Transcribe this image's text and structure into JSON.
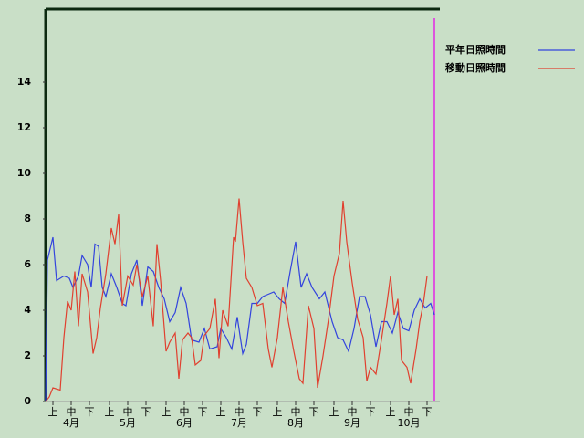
{
  "chart_data": {
    "type": "line",
    "series": [
      {
        "name": "平年日照時間",
        "color": "#3344dd",
        "x": [
          0,
          1,
          4,
          6,
          10,
          13,
          15,
          18,
          20,
          23,
          25,
          27,
          29,
          31,
          33,
          36,
          39,
          42,
          44,
          47,
          50,
          53,
          56,
          59,
          62,
          65,
          68,
          71,
          74,
          77,
          80,
          84,
          87,
          90,
          94,
          96,
          99,
          102,
          105,
          108,
          110,
          113,
          116,
          119,
          122,
          125,
          128,
          131,
          134,
          137,
          140,
          143,
          146,
          150,
          153,
          157,
          160,
          163,
          166,
          169,
          172,
          175,
          178,
          181,
          184,
          187,
          190,
          193,
          196,
          199,
          202,
          205,
          208,
          211,
          213
        ],
        "values": [
          0,
          6.2,
          7.2,
          5.3,
          5.5,
          5.4,
          5.0,
          5.5,
          6.4,
          6.0,
          5.0,
          6.9,
          6.8,
          5.0,
          4.6,
          5.6,
          5.0,
          4.3,
          4.2,
          5.6,
          6.2,
          4.2,
          5.9,
          5.7,
          5.0,
          4.5,
          3.5,
          3.9,
          5.0,
          4.3,
          2.7,
          2.6,
          3.2,
          2.3,
          2.4,
          3.2,
          2.8,
          2.3,
          3.7,
          2.1,
          2.5,
          4.3,
          4.3,
          4.6,
          4.7,
          4.8,
          4.5,
          4.3,
          5.7,
          7.0,
          5.0,
          5.6,
          5.0,
          4.5,
          4.8,
          3.5,
          2.8,
          2.7,
          2.2,
          3.2,
          4.6,
          4.6,
          3.8,
          2.4,
          3.5,
          3.5,
          3.0,
          3.9,
          3.2,
          3.1,
          4.0,
          4.5,
          4.1,
          4.3,
          3.8
        ]
      },
      {
        "name": "移動日照時間",
        "color": "#e0402f",
        "x": [
          0,
          2,
          4,
          8,
          10,
          12,
          14,
          16,
          18,
          20,
          23,
          26,
          28,
          30,
          33,
          36,
          38,
          40,
          42,
          45,
          48,
          50,
          53,
          56,
          59,
          61,
          63,
          66,
          68,
          71,
          73,
          75,
          78,
          80,
          82,
          85,
          87,
          90,
          93,
          95,
          97,
          100,
          103,
          104,
          106,
          108,
          110,
          113,
          116,
          119,
          122,
          124,
          127,
          130,
          133,
          136,
          139,
          141,
          144,
          147,
          149,
          152,
          155,
          158,
          161,
          163,
          165,
          168,
          171,
          174,
          176,
          178,
          181,
          184,
          187,
          189,
          191,
          193,
          195,
          198,
          200,
          203,
          205,
          207,
          209
        ],
        "values": [
          0,
          0.2,
          0.6,
          0.5,
          2.8,
          4.4,
          4.0,
          5.7,
          3.3,
          5.6,
          4.8,
          2.1,
          2.8,
          4.1,
          5.6,
          7.6,
          6.9,
          8.2,
          4.2,
          5.5,
          5.1,
          6.0,
          4.6,
          5.5,
          3.3,
          6.9,
          5.3,
          2.2,
          2.6,
          3.0,
          1.0,
          2.7,
          3.0,
          2.8,
          1.6,
          1.8,
          2.9,
          3.2,
          4.5,
          1.9,
          4.0,
          3.3,
          7.2,
          7.0,
          8.9,
          7.0,
          5.4,
          5.0,
          4.2,
          4.3,
          2.3,
          1.5,
          2.8,
          5.0,
          3.5,
          2.2,
          1.0,
          0.8,
          4.2,
          3.2,
          0.6,
          2.0,
          3.6,
          5.5,
          6.5,
          8.8,
          7.0,
          5.2,
          3.6,
          2.8,
          0.9,
          1.5,
          1.2,
          2.7,
          4.3,
          5.5,
          3.8,
          4.5,
          1.8,
          1.5,
          0.8,
          2.3,
          3.5,
          4.3,
          5.5
        ]
      }
    ],
    "xlim": [
      0,
      214
    ],
    "xticks": [
      {
        "value": 4,
        "label": "上"
      },
      {
        "value": 14,
        "label": "中"
      },
      {
        "value": 24,
        "label": "下"
      },
      {
        "value": 35,
        "label": "上"
      },
      {
        "value": 45,
        "label": "中"
      },
      {
        "value": 55,
        "label": "下"
      },
      {
        "value": 66,
        "label": "上"
      },
      {
        "value": 76,
        "label": "中"
      },
      {
        "value": 86,
        "label": "下"
      },
      {
        "value": 96,
        "label": "上"
      },
      {
        "value": 106,
        "label": "中"
      },
      {
        "value": 116,
        "label": "下"
      },
      {
        "value": 127,
        "label": "上"
      },
      {
        "value": 137,
        "label": "中"
      },
      {
        "value": 147,
        "label": "下"
      },
      {
        "value": 158,
        "label": "上"
      },
      {
        "value": 168,
        "label": "中"
      },
      {
        "value": 178,
        "label": "下"
      },
      {
        "value": 189,
        "label": "上"
      },
      {
        "value": 199,
        "label": "中"
      },
      {
        "value": 209,
        "label": "下"
      }
    ],
    "month_labels": [
      {
        "value": 14,
        "label": "4月"
      },
      {
        "value": 45,
        "label": "5月"
      },
      {
        "value": 76,
        "label": "6月"
      },
      {
        "value": 106,
        "label": "7月"
      },
      {
        "value": 137,
        "label": "8月"
      },
      {
        "value": 168,
        "label": "9月"
      },
      {
        "value": 199,
        "label": "10月"
      }
    ],
    "ylim": [
      0,
      17.2
    ],
    "yticks": [
      0,
      2,
      4,
      6,
      8,
      10,
      12,
      14
    ]
  }
}
